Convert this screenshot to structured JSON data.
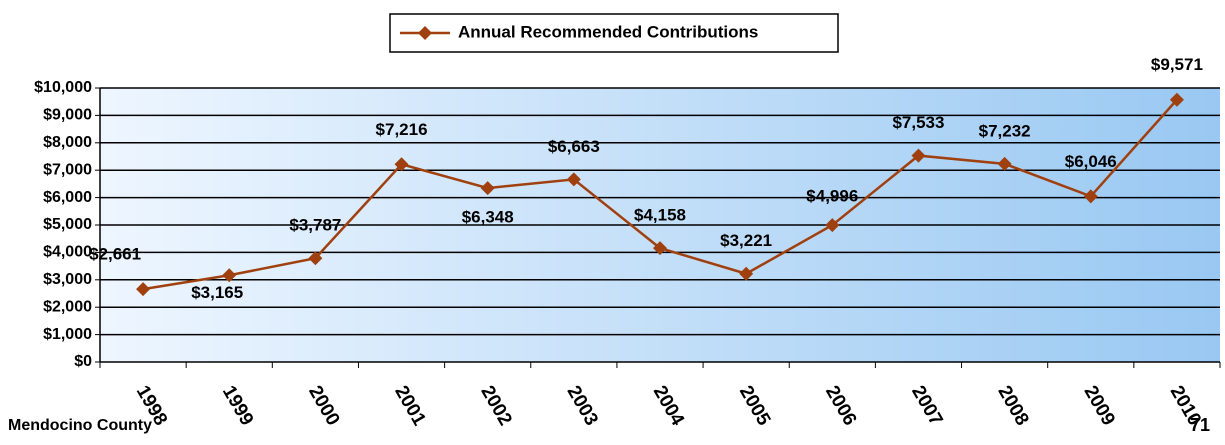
{
  "chart_data": {
    "type": "line",
    "legend": "top",
    "footer": "Mendocino County",
    "page_number": "71",
    "categories": [
      "1998",
      "1999",
      "2000",
      "2001",
      "2002",
      "2003",
      "2004",
      "2005",
      "2006",
      "2007",
      "2008",
      "2009",
      "2010"
    ],
    "series": [
      {
        "name": "Annual Recommended Contributions",
        "color": "#a0400f",
        "values": [
          2661,
          3165,
          3787,
          7216,
          6348,
          6663,
          4158,
          3221,
          4996,
          7533,
          7232,
          6046,
          9571
        ],
        "value_labels": [
          "$2,661",
          "$3,165",
          "$3,787",
          "$7,216",
          "$6,348",
          "$6,663",
          "$4,158",
          "$3,221",
          "$4,996",
          "$7,533",
          "$7,232",
          "$6,046",
          "$9,571"
        ]
      }
    ],
    "ylim": [
      0,
      10000
    ],
    "yticks": [
      {
        "value": 0,
        "label": "$0"
      },
      {
        "value": 1000,
        "label": "$1,000"
      },
      {
        "value": 2000,
        "label": "$2,000"
      },
      {
        "value": 3000,
        "label": "$3,000"
      },
      {
        "value": 4000,
        "label": "$4,000"
      },
      {
        "value": 5000,
        "label": "$5,000"
      },
      {
        "value": 6000,
        "label": "$6,000"
      },
      {
        "value": 7000,
        "label": "$7,000"
      },
      {
        "value": 8000,
        "label": "$8,000"
      },
      {
        "value": 9000,
        "label": "$9,000"
      },
      {
        "value": 10000,
        "label": "$10,000"
      }
    ],
    "grid": true
  }
}
